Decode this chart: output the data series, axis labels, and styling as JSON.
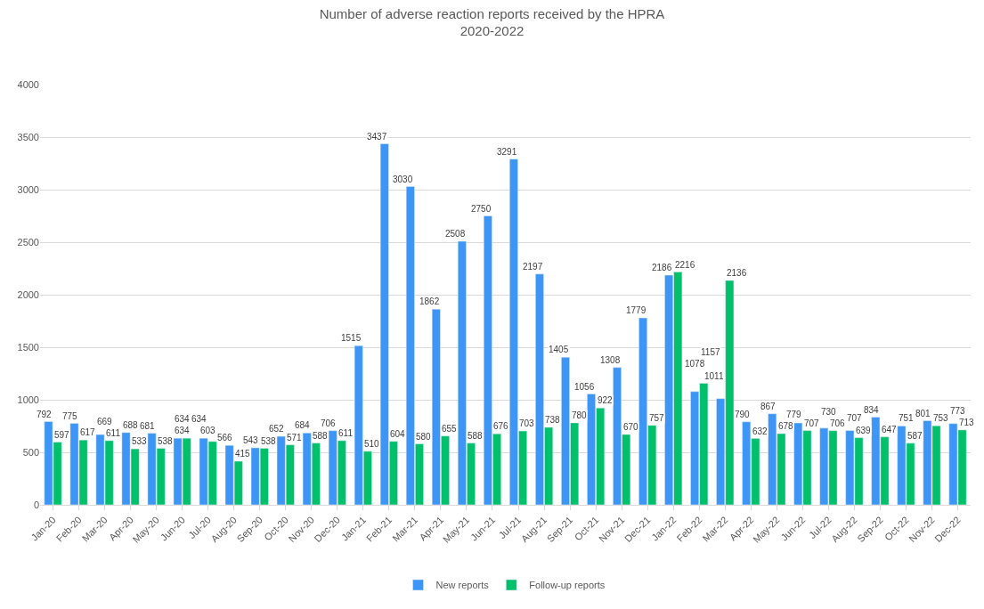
{
  "chart_data": {
    "type": "bar",
    "title": "Number of adverse reaction reports received by the HPRA\n2020-2022",
    "categories": [
      "Jan-20",
      "Feb-20",
      "Mar-20",
      "Apr-20",
      "May-20",
      "Jun-20",
      "Jul-20",
      "Aug-20",
      "Sep-20",
      "Oct-20",
      "Nov-20",
      "Dec-20",
      "Jan-21",
      "Feb-21",
      "Mar-21",
      "Apr-21",
      "May-21",
      "Jun-21",
      "Jul-21",
      "Aug-21",
      "Sep-21",
      "Oct-21",
      "Nov-21",
      "Dec-21",
      "Jan-22",
      "Feb-22",
      "Mar-22",
      "Apr-22",
      "May-22",
      "Jun-22",
      "Jul-22",
      "Aug-22",
      "Sep-22",
      "Oct-22",
      "Nov-22",
      "Dec-22"
    ],
    "series": [
      {
        "name": "New reports",
        "color": "#3d96f5",
        "values": [
          792,
          775,
          669,
          688,
          681,
          634,
          634,
          566,
          543,
          652,
          684,
          706,
          1515,
          3437,
          3030,
          1862,
          2508,
          2750,
          3291,
          2197,
          1405,
          1056,
          1308,
          1779,
          2186,
          1078,
          1011,
          790,
          867,
          779,
          730,
          707,
          834,
          751,
          801,
          773
        ]
      },
      {
        "name": "Follow-up reports",
        "color": "#00c06b",
        "values": [
          597,
          617,
          611,
          533,
          538,
          634,
          603,
          415,
          538,
          571,
          588,
          611,
          510,
          604,
          580,
          655,
          588,
          676,
          703,
          738,
          780,
          922,
          670,
          757,
          2216,
          1157,
          2136,
          632,
          678,
          707,
          706,
          639,
          647,
          587,
          753,
          713
        ]
      }
    ],
    "ylim": [
      0,
      4000
    ],
    "yticks": [
      0,
      500,
      1000,
      1500,
      2000,
      2500,
      3000,
      3500,
      4000
    ],
    "grid": "y",
    "legend": "bottom",
    "data_labels": true
  }
}
